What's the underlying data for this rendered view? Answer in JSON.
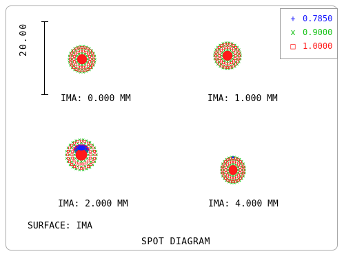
{
  "diagram": {
    "title": "SPOT DIAGRAM",
    "surface_label": "SURFACE: IMA",
    "scale_label": "20.00"
  },
  "legend": {
    "items": [
      {
        "symbol": "+",
        "value": "0.7850",
        "color": "#1a1aff"
      },
      {
        "symbol": "x",
        "value": "0.9000",
        "color": "#19c219"
      },
      {
        "symbol": "□",
        "value": "1.0000",
        "color": "#ff1a1a"
      }
    ]
  },
  "fields": [
    {
      "label": "IMA: 0.000 MM"
    },
    {
      "label": "IMA: 1.000 MM"
    },
    {
      "label": "IMA: 2.000 MM"
    },
    {
      "label": "IMA: 4.000 MM"
    }
  ],
  "colors": {
    "blue": "#1a1aff",
    "green": "#19c219",
    "red": "#ff1a1a",
    "frame": "#a9a9a9"
  }
}
